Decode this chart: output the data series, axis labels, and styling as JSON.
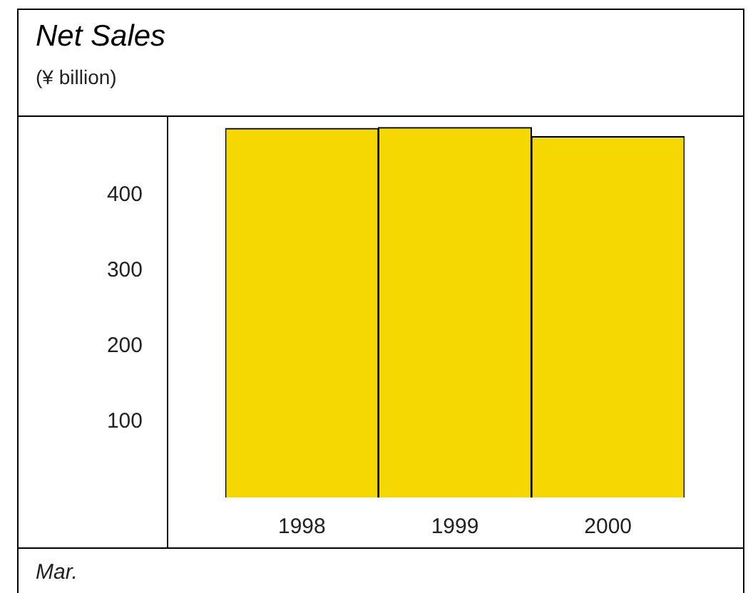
{
  "chart_data": {
    "type": "bar",
    "title": "Net Sales",
    "subtitle": "(¥ billion)",
    "xlabel": "Mar.",
    "categories": [
      "1998",
      "1999",
      "2000"
    ],
    "values": [
      488,
      489,
      477
    ],
    "color": "#f5d800",
    "ylim": [
      0,
      505
    ],
    "yticks": [
      100,
      200,
      300,
      400
    ],
    "grid": false,
    "legend": false
  }
}
